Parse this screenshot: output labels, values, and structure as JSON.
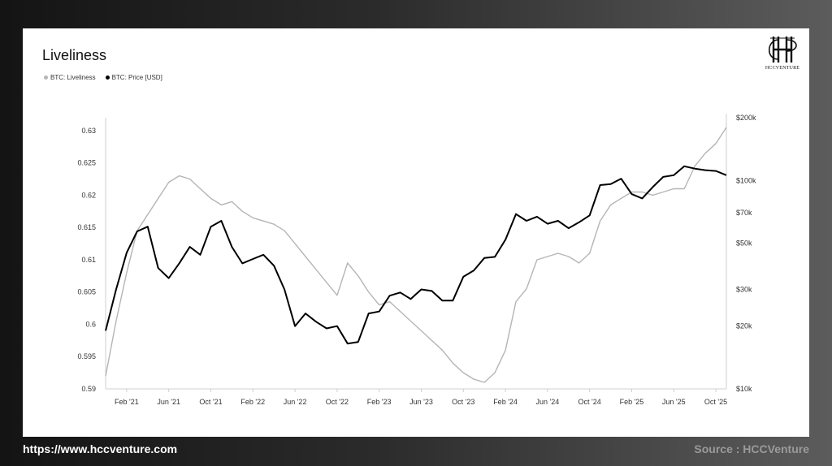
{
  "title": "Liveliness",
  "footer": {
    "url": "https://www.hccventure.com",
    "source": "Source : HCCVenture"
  },
  "logo": {
    "text": "HCCVENTURE"
  },
  "colors": {
    "liveliness": "#b5b5b5",
    "price": "#000000"
  },
  "chart_data": {
    "type": "line",
    "title": "Liveliness",
    "legend": [
      "BTC: Liveliness",
      "BTC: Price [USD]"
    ],
    "legend_position": "top-left",
    "grid": false,
    "x_range": [
      "2020-12",
      "2025-11"
    ],
    "x_ticks": [
      "Feb '21",
      "Jun '21",
      "Oct '21",
      "Feb '22",
      "Jun '22",
      "Oct '22",
      "Feb '23",
      "Jun '23",
      "Oct '23",
      "Feb '24",
      "Jun '24",
      "Oct '24",
      "Feb '25",
      "Jun '25",
      "Oct '25"
    ],
    "y_left": {
      "label": "",
      "range": [
        0.59,
        0.632
      ],
      "ticks": [
        "0.59",
        "0.595",
        "0.6",
        "0.605",
        "0.61",
        "0.615",
        "0.62",
        "0.625",
        "0.63"
      ]
    },
    "y_right": {
      "label": "",
      "scale": "log",
      "range": [
        10000,
        200000
      ],
      "ticks": [
        {
          "label": "$10k",
          "value": 10000
        },
        {
          "label": "$20k",
          "value": 20000
        },
        {
          "label": "$30k",
          "value": 30000
        },
        {
          "label": "$50k",
          "value": 50000
        },
        {
          "label": "$70k",
          "value": 70000
        },
        {
          "label": "$100k",
          "value": 100000
        },
        {
          "label": "$200k",
          "value": 200000
        }
      ]
    },
    "series": [
      {
        "name": "BTC: Liveliness",
        "axis": "left",
        "x": [
          "2020-12",
          "2021-01",
          "2021-02",
          "2021-03",
          "2021-04",
          "2021-05",
          "2021-06",
          "2021-07",
          "2021-08",
          "2021-09",
          "2021-10",
          "2021-11",
          "2021-12",
          "2022-01",
          "2022-02",
          "2022-03",
          "2022-04",
          "2022-05",
          "2022-06",
          "2022-07",
          "2022-08",
          "2022-09",
          "2022-10",
          "2022-11",
          "2022-12",
          "2023-01",
          "2023-02",
          "2023-03",
          "2023-04",
          "2023-05",
          "2023-06",
          "2023-07",
          "2023-08",
          "2023-09",
          "2023-10",
          "2023-11",
          "2023-12",
          "2024-01",
          "2024-02",
          "2024-03",
          "2024-04",
          "2024-05",
          "2024-06",
          "2024-07",
          "2024-08",
          "2024-09",
          "2024-10",
          "2024-11",
          "2024-12",
          "2025-01",
          "2025-02",
          "2025-03",
          "2025-04",
          "2025-05",
          "2025-06",
          "2025-07",
          "2025-08",
          "2025-09",
          "2025-10",
          "2025-11"
        ],
        "values": [
          0.592,
          0.6005,
          0.608,
          0.6145,
          0.617,
          0.6195,
          0.622,
          0.623,
          0.6225,
          0.621,
          0.6195,
          0.6185,
          0.619,
          0.6175,
          0.6165,
          0.616,
          0.6155,
          0.6145,
          0.6125,
          0.6105,
          0.6085,
          0.6065,
          0.6045,
          0.6095,
          0.6075,
          0.605,
          0.603,
          0.6035,
          0.602,
          0.6005,
          0.599,
          0.5975,
          0.596,
          0.594,
          0.5925,
          0.5915,
          0.591,
          0.5925,
          0.596,
          0.6035,
          0.6055,
          0.61,
          0.6105,
          0.611,
          0.6105,
          0.6095,
          0.611,
          0.616,
          0.6185,
          0.6195,
          0.6205,
          0.6205,
          0.62,
          0.6205,
          0.621,
          0.621,
          0.6245,
          0.6265,
          0.628,
          0.6305
        ]
      },
      {
        "name": "BTC: Price [USD]",
        "axis": "right",
        "x": [
          "2020-12",
          "2021-01",
          "2021-02",
          "2021-03",
          "2021-04",
          "2021-05",
          "2021-06",
          "2021-07",
          "2021-08",
          "2021-09",
          "2021-10",
          "2021-11",
          "2021-12",
          "2022-01",
          "2022-02",
          "2022-03",
          "2022-04",
          "2022-05",
          "2022-06",
          "2022-07",
          "2022-08",
          "2022-09",
          "2022-10",
          "2022-11",
          "2022-12",
          "2023-01",
          "2023-02",
          "2023-03",
          "2023-04",
          "2023-05",
          "2023-06",
          "2023-07",
          "2023-08",
          "2023-09",
          "2023-10",
          "2023-11",
          "2023-12",
          "2024-01",
          "2024-02",
          "2024-03",
          "2024-04",
          "2024-05",
          "2024-06",
          "2024-07",
          "2024-08",
          "2024-09",
          "2024-10",
          "2024-11",
          "2024-12",
          "2025-01",
          "2025-02",
          "2025-03",
          "2025-04",
          "2025-05",
          "2025-06",
          "2025-07",
          "2025-08",
          "2025-09",
          "2025-10",
          "2025-11"
        ],
        "values": [
          19000,
          30000,
          45000,
          57000,
          60000,
          38000,
          34000,
          40000,
          48000,
          44000,
          60000,
          64000,
          48000,
          40000,
          42000,
          44000,
          39000,
          30000,
          20000,
          23000,
          21000,
          19500,
          20000,
          16500,
          16800,
          23000,
          23500,
          28000,
          29000,
          27000,
          30000,
          29500,
          26500,
          26500,
          34500,
          37000,
          42500,
          43000,
          52000,
          69000,
          64000,
          67000,
          62000,
          64000,
          59000,
          63000,
          68000,
          95000,
          96000,
          102000,
          86000,
          82000,
          93000,
          104000,
          106000,
          117000,
          114000,
          112000,
          111000,
          106000
        ]
      }
    ]
  }
}
